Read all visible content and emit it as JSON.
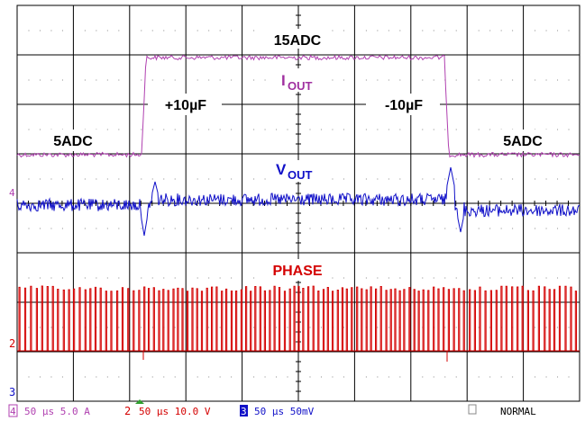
{
  "annotations": {
    "top_current": "15ADC",
    "iout_main": "I",
    "iout_sub": "OUT",
    "step_up": "+10µF",
    "step_down": "-10µF",
    "left_current": "5ADC",
    "right_current": "5ADC",
    "vout_main": "V",
    "vout_sub": "OUT",
    "phase": "PHASE"
  },
  "channel_markers": {
    "ch4": "4",
    "ch2": "2",
    "ch3": "3"
  },
  "status_bar": {
    "ch4_num": "4",
    "ch4_setting": "50 µs 5.0 A",
    "ch2_num": "2",
    "ch2_setting": "50 µs 10.0 V",
    "ch3_num": "3",
    "ch3_setting": "50 µs 50mV",
    "mode": "NORMAL"
  },
  "colors": {
    "grid": "#000000",
    "iout": "#b040b0",
    "vout": "#1010c8",
    "phase": "#d40000"
  },
  "chart_data": {
    "type": "line",
    "x_divisions": 10,
    "y_divisions": 8,
    "series": [
      {
        "name": "IOUT",
        "points": [
          [
            0,
            5
          ],
          [
            2.2,
            5
          ],
          [
            2.25,
            15
          ],
          [
            7.35,
            15
          ],
          [
            7.4,
            5
          ],
          [
            10,
            5
          ]
        ]
      },
      {
        "name": "VOUT",
        "points": []
      },
      {
        "name": "PHASE",
        "points": []
      }
    ]
  }
}
